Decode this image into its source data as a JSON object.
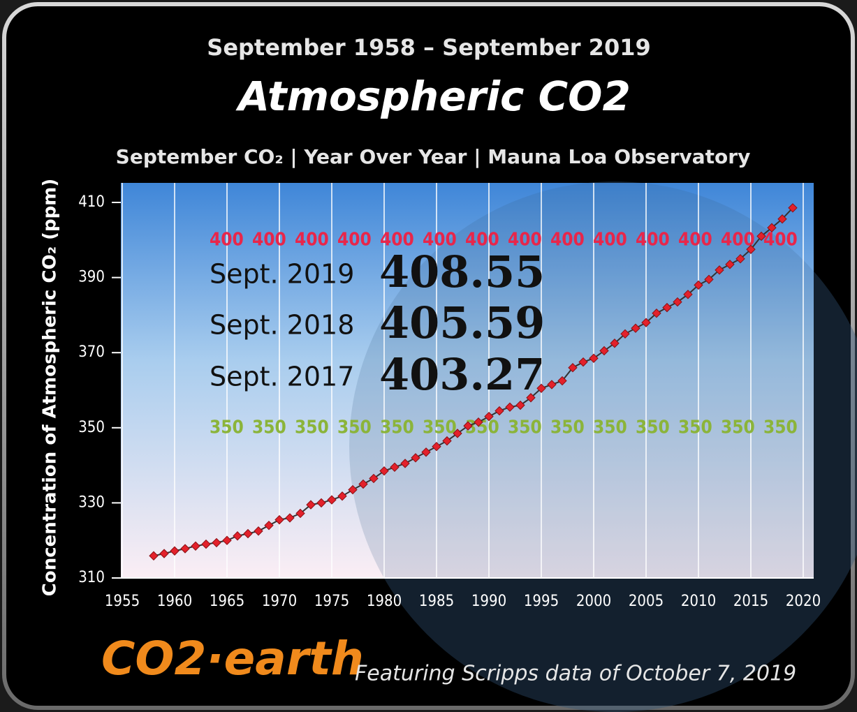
{
  "chart_data": {
    "type": "line",
    "supertitle": "September 1958 – September 2019",
    "title": "Atmospheric CO2",
    "subtitle": "September CO₂  | Year Over Year | Mauna Loa Observatory",
    "ylabel": "Concentration of Atmospheric CO₂ (ppm)",
    "x": [
      1958,
      1959,
      1960,
      1961,
      1962,
      1963,
      1964,
      1965,
      1966,
      1967,
      1968,
      1969,
      1970,
      1971,
      1972,
      1973,
      1974,
      1975,
      1976,
      1977,
      1978,
      1979,
      1980,
      1981,
      1982,
      1983,
      1984,
      1985,
      1986,
      1987,
      1988,
      1989,
      1990,
      1991,
      1992,
      1993,
      1994,
      1995,
      1996,
      1997,
      1998,
      1999,
      2000,
      2001,
      2002,
      2003,
      2004,
      2005,
      2006,
      2007,
      2008,
      2009,
      2010,
      2011,
      2012,
      2013,
      2014,
      2015,
      2016,
      2017,
      2018,
      2019
    ],
    "series": [
      {
        "name": "September CO₂",
        "color": "#e3212b",
        "values": [
          315.9,
          316.5,
          317.2,
          317.8,
          318.5,
          319.0,
          319.4,
          320.0,
          321.2,
          321.8,
          322.5,
          324.0,
          325.5,
          326.0,
          327.2,
          329.5,
          330.0,
          330.8,
          331.8,
          333.5,
          335.0,
          336.5,
          338.5,
          339.5,
          340.5,
          342.0,
          343.5,
          345.0,
          346.5,
          348.5,
          350.5,
          351.5,
          353.0,
          354.5,
          355.5,
          356.0,
          358.0,
          360.5,
          361.5,
          362.5,
          366.0,
          367.5,
          368.5,
          370.5,
          372.5,
          375.0,
          376.5,
          378.0,
          380.5,
          382.0,
          383.5,
          385.5,
          388.0,
          389.5,
          392.0,
          393.5,
          395.0,
          397.5,
          401.0,
          403.27,
          405.59,
          408.55
        ]
      }
    ],
    "xlim": [
      1955,
      2020
    ],
    "xticks": [
      1955,
      1960,
      1965,
      1970,
      1975,
      1980,
      1985,
      1990,
      1995,
      2000,
      2005,
      2010,
      2015,
      2020
    ],
    "ylim": [
      310,
      410
    ],
    "yticks": [
      310,
      330,
      350,
      370,
      390,
      410
    ],
    "reference_lines": [
      {
        "value": 400,
        "color": "#e8264a"
      },
      {
        "value": 350,
        "color": "#8bb43a"
      }
    ],
    "annotations": [
      {
        "label": "Sept. 2019",
        "value": "408.55"
      },
      {
        "label": "Sept. 2018",
        "value": "405.59"
      },
      {
        "label": "Sept. 2017",
        "value": "403.27"
      }
    ],
    "logo": "CO2·earth",
    "footer": "Featuring Scripps  data of October 7, 2019",
    "grid": true
  }
}
